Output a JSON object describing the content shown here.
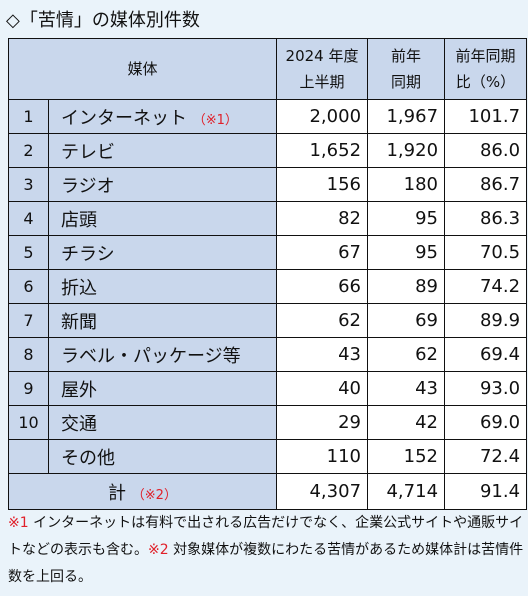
{
  "heading": "◇「苦情」の媒体別件数",
  "table": {
    "headers": {
      "media": "媒体",
      "current_line1": "2024 年度",
      "current_line2": "上半期",
      "prev_line1": "前年",
      "prev_line2": "同期",
      "ratio_line1": "前年同期",
      "ratio_line2": "比（%）"
    },
    "rows": [
      {
        "no": "1",
        "name": "インターネット",
        "note": "（※1）",
        "current": "2,000",
        "prev": "1,967",
        "ratio": "101.7"
      },
      {
        "no": "2",
        "name": "テレビ",
        "note": "",
        "current": "1,652",
        "prev": "1,920",
        "ratio": "86.0"
      },
      {
        "no": "3",
        "name": "ラジオ",
        "note": "",
        "current": "156",
        "prev": "180",
        "ratio": "86.7"
      },
      {
        "no": "4",
        "name": "店頭",
        "note": "",
        "current": "82",
        "prev": "95",
        "ratio": "86.3"
      },
      {
        "no": "5",
        "name": "チラシ",
        "note": "",
        "current": "67",
        "prev": "95",
        "ratio": "70.5"
      },
      {
        "no": "6",
        "name": "折込",
        "note": "",
        "current": "66",
        "prev": "89",
        "ratio": "74.2"
      },
      {
        "no": "7",
        "name": "新聞",
        "note": "",
        "current": "62",
        "prev": "69",
        "ratio": "89.9"
      },
      {
        "no": "8",
        "name": "ラベル・パッケージ等",
        "note": "",
        "current": "43",
        "prev": "62",
        "ratio": "69.4"
      },
      {
        "no": "9",
        "name": "屋外",
        "note": "",
        "current": "40",
        "prev": "43",
        "ratio": "93.0"
      },
      {
        "no": "10",
        "name": "交通",
        "note": "",
        "current": "29",
        "prev": "42",
        "ratio": "69.0"
      },
      {
        "no": "",
        "name": "その他",
        "note": "",
        "current": "110",
        "prev": "152",
        "ratio": "72.4"
      }
    ],
    "total": {
      "label": "計",
      "note": "（※2）",
      "current": "4,307",
      "prev": "4,714",
      "ratio": "91.4"
    }
  },
  "footnote": {
    "mark1": "※1",
    "text1": " インターネットは有料で出される広告だけでなく、企業公式サイトや通販サイトなどの表示も含む。",
    "mark2": "※2",
    "text2": " 対象媒体が複数にわたる苦情があるため媒体計は苦情件数を上回る。"
  }
}
